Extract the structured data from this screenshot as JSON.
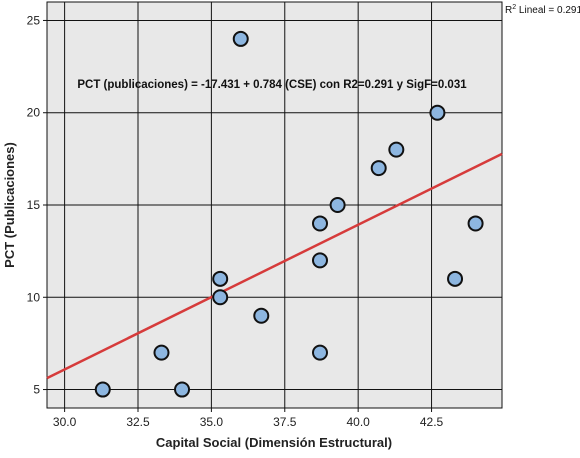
{
  "chart_data": {
    "type": "scatter",
    "xlabel": "Capital Social (Dimensión Estructural)",
    "ylabel": "PCT (Publicaciones)",
    "xlim": [
      29.4,
      44.9
    ],
    "ylim": [
      4.0,
      26.0
    ],
    "x_ticks": [
      30.0,
      32.5,
      35.0,
      37.5,
      40.0,
      42.5
    ],
    "x_tick_labels": [
      "30.0",
      "32.5",
      "35.0",
      "37.5",
      "40.0",
      "42.5"
    ],
    "y_ticks": [
      5,
      10,
      15,
      20,
      25
    ],
    "y_tick_labels": [
      "5",
      "10",
      "15",
      "20",
      "25"
    ],
    "grid": true,
    "points": [
      {
        "x": 31.3,
        "y": 5
      },
      {
        "x": 33.3,
        "y": 7
      },
      {
        "x": 34.0,
        "y": 5
      },
      {
        "x": 35.3,
        "y": 11
      },
      {
        "x": 35.3,
        "y": 10
      },
      {
        "x": 36.0,
        "y": 24
      },
      {
        "x": 36.7,
        "y": 9
      },
      {
        "x": 38.7,
        "y": 14
      },
      {
        "x": 38.7,
        "y": 12
      },
      {
        "x": 38.7,
        "y": 7
      },
      {
        "x": 39.3,
        "y": 15
      },
      {
        "x": 40.7,
        "y": 17
      },
      {
        "x": 41.3,
        "y": 18
      },
      {
        "x": 42.7,
        "y": 20
      },
      {
        "x": 43.3,
        "y": 11
      },
      {
        "x": 44.0,
        "y": 14
      }
    ],
    "fit_line": {
      "intercept": -17.431,
      "slope": 0.784
    },
    "annotation": "PCT (publicaciones) = -17.431 + 0.784 (CSE) con R2=0.291 y SigF=0.031",
    "legend": {
      "prefix": "R",
      "superscript": "2",
      "suffix": " Lineal = 0.291",
      "placement": "top-right"
    },
    "colors": {
      "point_fill": "#8db6e0",
      "point_stroke": "#111111",
      "fit_line": "#d63b3b",
      "plot_background": "#e8e8e8",
      "grid": "#111111"
    }
  }
}
